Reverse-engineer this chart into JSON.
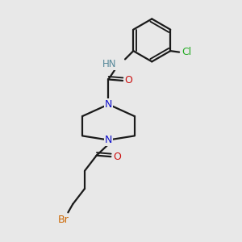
{
  "background_color": "#e8e8e8",
  "bond_color": "#1a1a1a",
  "N_color": "#1010cc",
  "O_color": "#cc1010",
  "Cl_color": "#22aa22",
  "Br_color": "#cc6600",
  "H_color": "#558899",
  "font_size": 8.5,
  "line_width": 1.6,
  "figsize": [
    3.0,
    3.0
  ],
  "dpi": 100,
  "xlim": [
    0,
    10
  ],
  "ylim": [
    0,
    10
  ]
}
